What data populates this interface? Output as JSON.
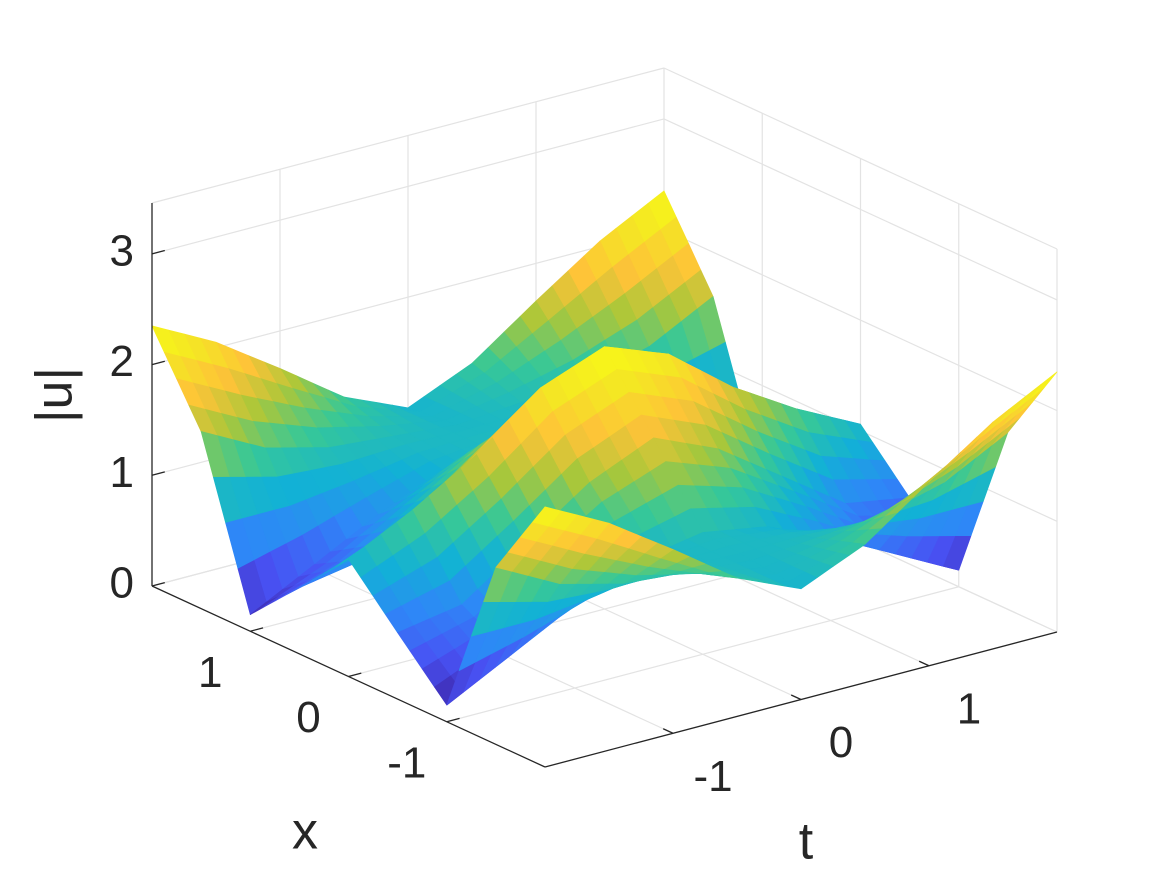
{
  "chart_data": {
    "type": "surface",
    "xlabel": "x",
    "ylabel": "t",
    "zlabel": "|u|",
    "x": [
      -2,
      -1.5,
      -1,
      -0.5,
      0,
      0.5,
      1,
      1.5,
      2
    ],
    "y": [
      -2,
      -1.5,
      -1,
      -0.5,
      0,
      0.5,
      1,
      1.5,
      2
    ],
    "z": [
      [
        2.35,
        1.6,
        0.15,
        0.6,
        1.06,
        0.6,
        0.15,
        1.6,
        2.35
      ],
      [
        2.05,
        1.3,
        0.45,
        0.7,
        1.35,
        0.7,
        0.45,
        1.3,
        2.05
      ],
      [
        1.66,
        1.15,
        0.75,
        1.1,
        1.7,
        1.1,
        0.75,
        1.15,
        1.66
      ],
      [
        1.25,
        1.1,
        1.0,
        1.5,
        2.15,
        1.5,
        1.0,
        1.1,
        1.25
      ],
      [
        1.0,
        1.05,
        1.1,
        1.75,
        2.37,
        1.75,
        1.1,
        1.05,
        1.0
      ],
      [
        1.25,
        1.1,
        1.0,
        1.5,
        2.15,
        1.5,
        1.0,
        1.1,
        1.25
      ],
      [
        1.66,
        1.15,
        0.75,
        1.1,
        1.7,
        1.1,
        0.75,
        1.15,
        1.66
      ],
      [
        2.05,
        1.3,
        0.45,
        0.7,
        1.35,
        0.7,
        0.45,
        1.3,
        2.05
      ],
      [
        2.35,
        1.6,
        0.15,
        0.6,
        1.06,
        0.6,
        0.15,
        1.6,
        2.35
      ]
    ],
    "xlim": [
      -2,
      2
    ],
    "ylim": [
      -2,
      2
    ],
    "zlim": [
      0,
      3.46
    ],
    "xticks": [
      -1,
      0,
      1
    ],
    "yticks": [
      -1,
      0,
      1
    ],
    "zticks": [
      0,
      1,
      2,
      3
    ],
    "grid": true,
    "colormap": [
      "#3e26a8",
      "#4852f4",
      "#2e87f7",
      "#12b1d6",
      "#37c897",
      "#abc739",
      "#fec338",
      "#f4e624",
      "#f9fb15"
    ]
  }
}
